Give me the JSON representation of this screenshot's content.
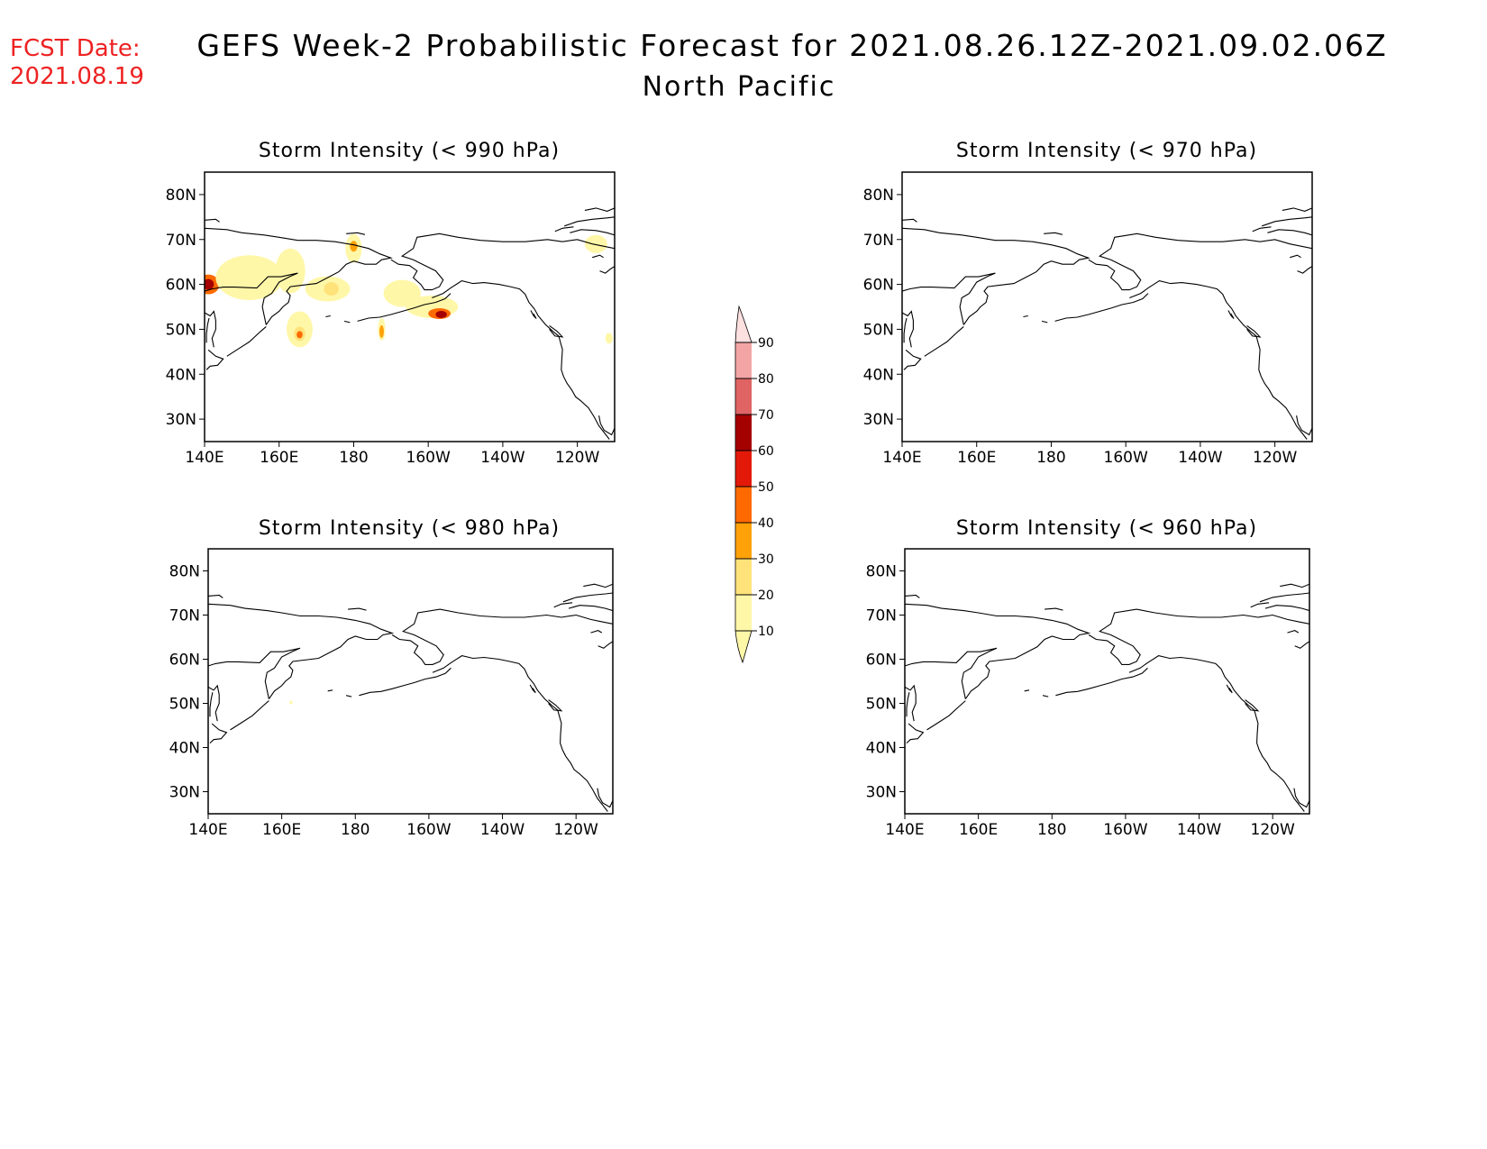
{
  "header": {
    "fcst_label": "FCST Date:",
    "fcst_date": "2021.08.19",
    "title": "GEFS Week-2 Probabilistic Forecast for 2021.08.26.12Z-2021.09.02.06Z",
    "subtitle": "North Pacific",
    "fcst_color": "#ee2222"
  },
  "lat_ticks": [
    "80N",
    "70N",
    "60N",
    "50N",
    "40N",
    "30N"
  ],
  "lon_ticks": [
    "140E",
    "160E",
    "180",
    "160W",
    "140W",
    "120W"
  ],
  "panels": [
    {
      "id": "p990",
      "title": "Storm Intensity (< 990 hPa)",
      "blobs": [
        {
          "lon": 141,
          "lat": 60,
          "rx": 3,
          "ry": 2.2,
          "level": 40
        },
        {
          "lon": 141,
          "lat": 60,
          "rx": 1.5,
          "ry": 1.2,
          "level": 60
        },
        {
          "lon": 152,
          "lat": 61.5,
          "rx": 9,
          "ry": 5,
          "level": 10
        },
        {
          "lon": 163,
          "lat": 63,
          "rx": 4,
          "ry": 5,
          "level": 10
        },
        {
          "lon": 173,
          "lat": 59,
          "rx": 6,
          "ry": 2.8,
          "level": 10
        },
        {
          "lon": 174,
          "lat": 59,
          "rx": 2,
          "ry": 1.5,
          "level": 20
        },
        {
          "lon": 165.5,
          "lat": 50,
          "rx": 3.5,
          "ry": 4,
          "level": 10
        },
        {
          "lon": 165.5,
          "lat": 49,
          "rx": 1.5,
          "ry": 1.6,
          "level": 20
        },
        {
          "lon": 165.5,
          "lat": 48.8,
          "rx": 0.8,
          "ry": 0.8,
          "level": 40
        },
        {
          "lon": 180,
          "lat": 68,
          "rx": 2.2,
          "ry": 3.2,
          "level": 10
        },
        {
          "lon": 180,
          "lat": 68.5,
          "rx": 1,
          "ry": 1.2,
          "level": 30
        },
        {
          "lon": 187.5,
          "lat": 50,
          "rx": 1,
          "ry": 2.5,
          "level": 10
        },
        {
          "lon": 187.5,
          "lat": 49.5,
          "rx": 0.6,
          "ry": 1.4,
          "level": 30
        },
        {
          "lon": 193,
          "lat": 58,
          "rx": 5,
          "ry": 3,
          "level": 10
        },
        {
          "lon": 201,
          "lat": 55,
          "rx": 7,
          "ry": 2.5,
          "level": 10
        },
        {
          "lon": 203,
          "lat": 53.5,
          "rx": 3,
          "ry": 1.2,
          "level": 40
        },
        {
          "lon": 203.5,
          "lat": 53.3,
          "rx": 1.5,
          "ry": 0.8,
          "level": 60
        },
        {
          "lon": 245,
          "lat": 69,
          "rx": 3,
          "ry": 2,
          "level": 10
        },
        {
          "lon": 248.5,
          "lat": 48,
          "rx": 1,
          "ry": 1.2,
          "level": 10
        }
      ]
    },
    {
      "id": "p970",
      "title": "Storm Intensity (< 970 hPa)",
      "blobs": []
    },
    {
      "id": "p980",
      "title": "Storm Intensity (< 980 hPa)",
      "blobs": [
        {
          "lon": 162.5,
          "lat": 50.2,
          "rx": 0.4,
          "ry": 0.4,
          "level": 10
        }
      ]
    },
    {
      "id": "p960",
      "title": "Storm Intensity (< 960 hPa)",
      "blobs": []
    }
  ],
  "colorbar": {
    "levels": [
      10,
      20,
      30,
      40,
      50,
      60,
      70,
      80,
      90
    ],
    "labels": [
      "10",
      "20",
      "30",
      "40",
      "50",
      "60",
      "70",
      "80",
      "90"
    ],
    "colors": [
      "#fff7a8",
      "#ffe27a",
      "#ffa20a",
      "#ff6a00",
      "#e31a0a",
      "#a50000",
      "#e06464",
      "#f3a5a5",
      "#fde0e0"
    ]
  }
}
